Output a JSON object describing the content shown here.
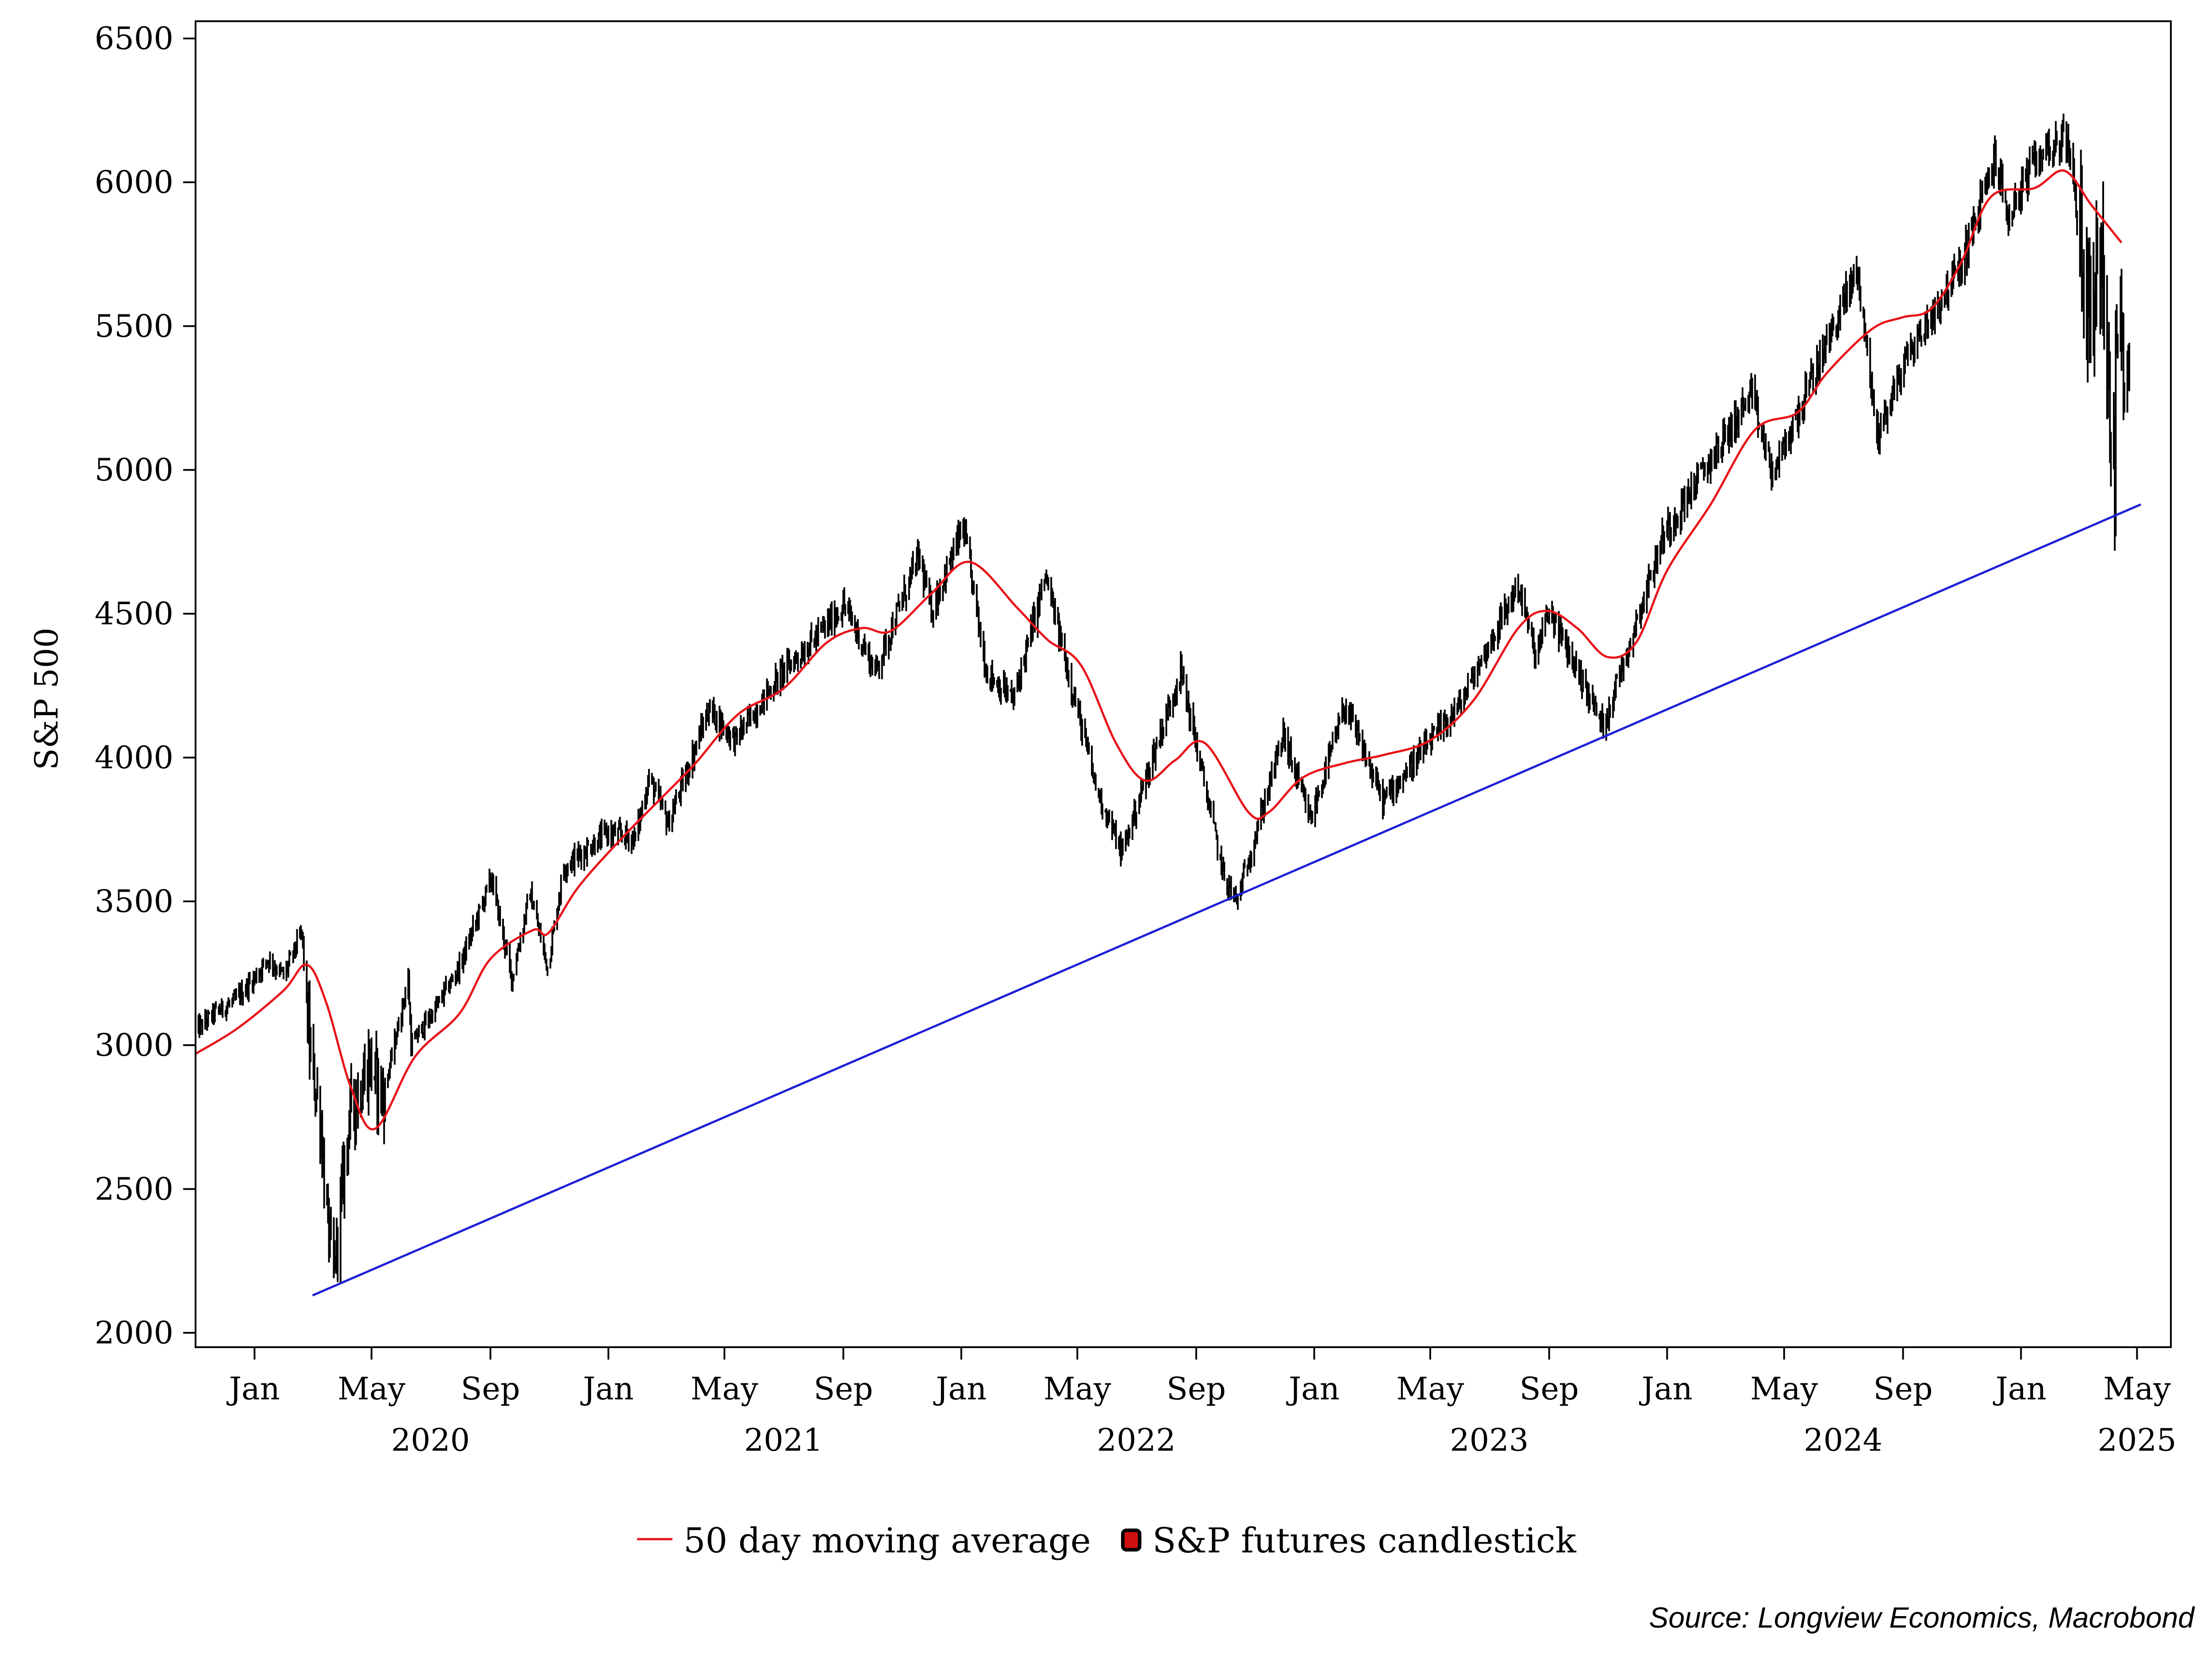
{
  "chart_data": {
    "type": "line",
    "title": "",
    "ylabel": "S&P 500",
    "ylim": [
      1950,
      6560
    ],
    "yticks": [
      2000,
      2500,
      3000,
      3500,
      4000,
      4500,
      5000,
      5500,
      6000,
      6500
    ],
    "xlim": [
      "2019-11-01",
      "2025-06-05"
    ],
    "month_ticks": [
      {
        "date": "2020-01-01",
        "label": "Jan"
      },
      {
        "date": "2020-05-01",
        "label": "May"
      },
      {
        "date": "2020-09-01",
        "label": "Sep"
      },
      {
        "date": "2021-01-01",
        "label": "Jan"
      },
      {
        "date": "2021-05-01",
        "label": "May"
      },
      {
        "date": "2021-09-01",
        "label": "Sep"
      },
      {
        "date": "2022-01-01",
        "label": "Jan"
      },
      {
        "date": "2022-05-01",
        "label": "May"
      },
      {
        "date": "2022-09-01",
        "label": "Sep"
      },
      {
        "date": "2023-01-01",
        "label": "Jan"
      },
      {
        "date": "2023-05-01",
        "label": "May"
      },
      {
        "date": "2023-09-01",
        "label": "Sep"
      },
      {
        "date": "2024-01-01",
        "label": "Jan"
      },
      {
        "date": "2024-05-01",
        "label": "May"
      },
      {
        "date": "2024-09-01",
        "label": "Sep"
      },
      {
        "date": "2025-01-01",
        "label": "Jan"
      },
      {
        "date": "2025-05-01",
        "label": "May"
      }
    ],
    "year_labels": [
      {
        "date": "2020-07-01",
        "label": "2020"
      },
      {
        "date": "2021-07-01",
        "label": "2021"
      },
      {
        "date": "2022-07-01",
        "label": "2022"
      },
      {
        "date": "2023-07-01",
        "label": "2023"
      },
      {
        "date": "2024-07-01",
        "label": "2024"
      },
      {
        "date": "2025-05-01",
        "label": "2025"
      }
    ],
    "series": [
      {
        "name": "S&P futures candlestick",
        "type": "candlestick",
        "color": "#000000",
        "points": [
          [
            "2019-11-01",
            3050
          ],
          [
            "2019-11-20",
            3110
          ],
          [
            "2019-12-10",
            3150
          ],
          [
            "2019-12-31",
            3230
          ],
          [
            "2020-01-15",
            3300
          ],
          [
            "2020-01-31",
            3240
          ],
          [
            "2020-02-19",
            3390
          ],
          [
            "2020-02-28",
            2950
          ],
          [
            "2020-03-09",
            2750
          ],
          [
            "2020-03-16",
            2400
          ],
          [
            "2020-03-23",
            2200
          ],
          [
            "2020-04-08",
            2750
          ],
          [
            "2020-04-29",
            2940
          ],
          [
            "2020-05-13",
            2820
          ],
          [
            "2020-06-08",
            3230
          ],
          [
            "2020-06-11",
            3000
          ],
          [
            "2020-07-01",
            3100
          ],
          [
            "2020-07-31",
            3270
          ],
          [
            "2020-09-02",
            3580
          ],
          [
            "2020-09-23",
            3230
          ],
          [
            "2020-10-12",
            3530
          ],
          [
            "2020-10-30",
            3270
          ],
          [
            "2020-11-16",
            3620
          ],
          [
            "2020-12-31",
            3740
          ],
          [
            "2021-01-29",
            3720
          ],
          [
            "2021-02-12",
            3930
          ],
          [
            "2021-03-04",
            3770
          ],
          [
            "2021-04-15",
            4170
          ],
          [
            "2021-05-12",
            4060
          ],
          [
            "2021-06-30",
            4300
          ],
          [
            "2021-07-30",
            4400
          ],
          [
            "2021-09-02",
            4530
          ],
          [
            "2021-10-04",
            4300
          ],
          [
            "2021-11-18",
            4700
          ],
          [
            "2021-12-01",
            4510
          ],
          [
            "2022-01-03",
            4800
          ],
          [
            "2022-01-27",
            4300
          ],
          [
            "2022-02-24",
            4200
          ],
          [
            "2022-03-29",
            4630
          ],
          [
            "2022-05-20",
            3900
          ],
          [
            "2022-06-16",
            3670
          ],
          [
            "2022-08-16",
            4300
          ],
          [
            "2022-09-30",
            3580
          ],
          [
            "2022-10-13",
            3500
          ],
          [
            "2022-11-30",
            4080
          ],
          [
            "2022-12-28",
            3780
          ],
          [
            "2023-02-02",
            4180
          ],
          [
            "2023-03-13",
            3850
          ],
          [
            "2023-05-31",
            4180
          ],
          [
            "2023-07-31",
            4600
          ],
          [
            "2023-08-18",
            4350
          ],
          [
            "2023-09-01",
            4510
          ],
          [
            "2023-10-27",
            4110
          ],
          [
            "2023-12-29",
            4780
          ],
          [
            "2024-03-28",
            5260
          ],
          [
            "2024-04-19",
            4980
          ],
          [
            "2024-07-16",
            5700
          ],
          [
            "2024-08-05",
            5120
          ],
          [
            "2024-09-06",
            5400
          ],
          [
            "2024-10-31",
            5710
          ],
          [
            "2024-12-06",
            6090
          ],
          [
            "2024-12-18",
            5880
          ],
          [
            "2025-01-24",
            6120
          ],
          [
            "2025-02-19",
            6150
          ],
          [
            "2025-03-13",
            5520
          ],
          [
            "2025-03-25",
            5780
          ],
          [
            "2025-04-08",
            4850
          ],
          [
            "2025-04-09",
            5450
          ],
          [
            "2025-04-23",
            5420
          ]
        ]
      },
      {
        "name": "50 day moving average",
        "type": "line",
        "color": "#e8141a",
        "points": [
          [
            "2019-11-01",
            2970
          ],
          [
            "2019-12-15",
            3060
          ],
          [
            "2020-01-31",
            3190
          ],
          [
            "2020-02-24",
            3280
          ],
          [
            "2020-03-15",
            3150
          ],
          [
            "2020-04-10",
            2850
          ],
          [
            "2020-05-05",
            2710
          ],
          [
            "2020-06-15",
            2960
          ],
          [
            "2020-07-31",
            3110
          ],
          [
            "2020-09-01",
            3300
          ],
          [
            "2020-10-15",
            3400
          ],
          [
            "2020-10-31",
            3390
          ],
          [
            "2020-12-01",
            3550
          ],
          [
            "2021-01-15",
            3720
          ],
          [
            "2021-02-28",
            3870
          ],
          [
            "2021-04-01",
            3980
          ],
          [
            "2021-05-15",
            4150
          ],
          [
            "2021-07-01",
            4240
          ],
          [
            "2021-08-15",
            4400
          ],
          [
            "2021-09-20",
            4450
          ],
          [
            "2021-10-20",
            4440
          ],
          [
            "2021-12-01",
            4570
          ],
          [
            "2022-01-10",
            4680
          ],
          [
            "2022-02-28",
            4520
          ],
          [
            "2022-03-31",
            4410
          ],
          [
            "2022-05-05",
            4320
          ],
          [
            "2022-06-10",
            4050
          ],
          [
            "2022-07-10",
            3920
          ],
          [
            "2022-08-10",
            3990
          ],
          [
            "2022-09-10",
            4050
          ],
          [
            "2022-10-25",
            3810
          ],
          [
            "2022-11-15",
            3810
          ],
          [
            "2022-12-20",
            3930
          ],
          [
            "2023-02-01",
            3980
          ],
          [
            "2023-03-15",
            4010
          ],
          [
            "2023-05-01",
            4060
          ],
          [
            "2023-06-15",
            4200
          ],
          [
            "2023-07-31",
            4450
          ],
          [
            "2023-08-30",
            4510
          ],
          [
            "2023-09-30",
            4450
          ],
          [
            "2023-10-31",
            4350
          ],
          [
            "2023-11-30",
            4400
          ],
          [
            "2024-01-01",
            4650
          ],
          [
            "2024-02-15",
            4880
          ],
          [
            "2024-04-01",
            5140
          ],
          [
            "2024-05-15",
            5200
          ],
          [
            "2024-06-15",
            5340
          ],
          [
            "2024-07-31",
            5490
          ],
          [
            "2024-08-31",
            5530
          ],
          [
            "2024-09-30",
            5560
          ],
          [
            "2024-10-31",
            5720
          ],
          [
            "2024-12-01",
            5950
          ],
          [
            "2025-01-15",
            5980
          ],
          [
            "2025-02-15",
            6040
          ],
          [
            "2025-03-15",
            5920
          ],
          [
            "2025-04-15",
            5790
          ]
        ]
      },
      {
        "name": "",
        "type": "trendline",
        "color": "#1f1fd6",
        "points": [
          [
            "2020-03-01",
            2130
          ],
          [
            "2025-05-05",
            4880
          ]
        ]
      }
    ]
  },
  "legend": {
    "ma_label": "50 day moving average",
    "candle_label": "S&P futures candlestick"
  },
  "source": "Source: Longview Economics, Macrobond",
  "colors": {
    "candle": "#000000",
    "ma": "#e8141a",
    "trend": "#1f1fd6",
    "legend_marker": "#d01010"
  }
}
